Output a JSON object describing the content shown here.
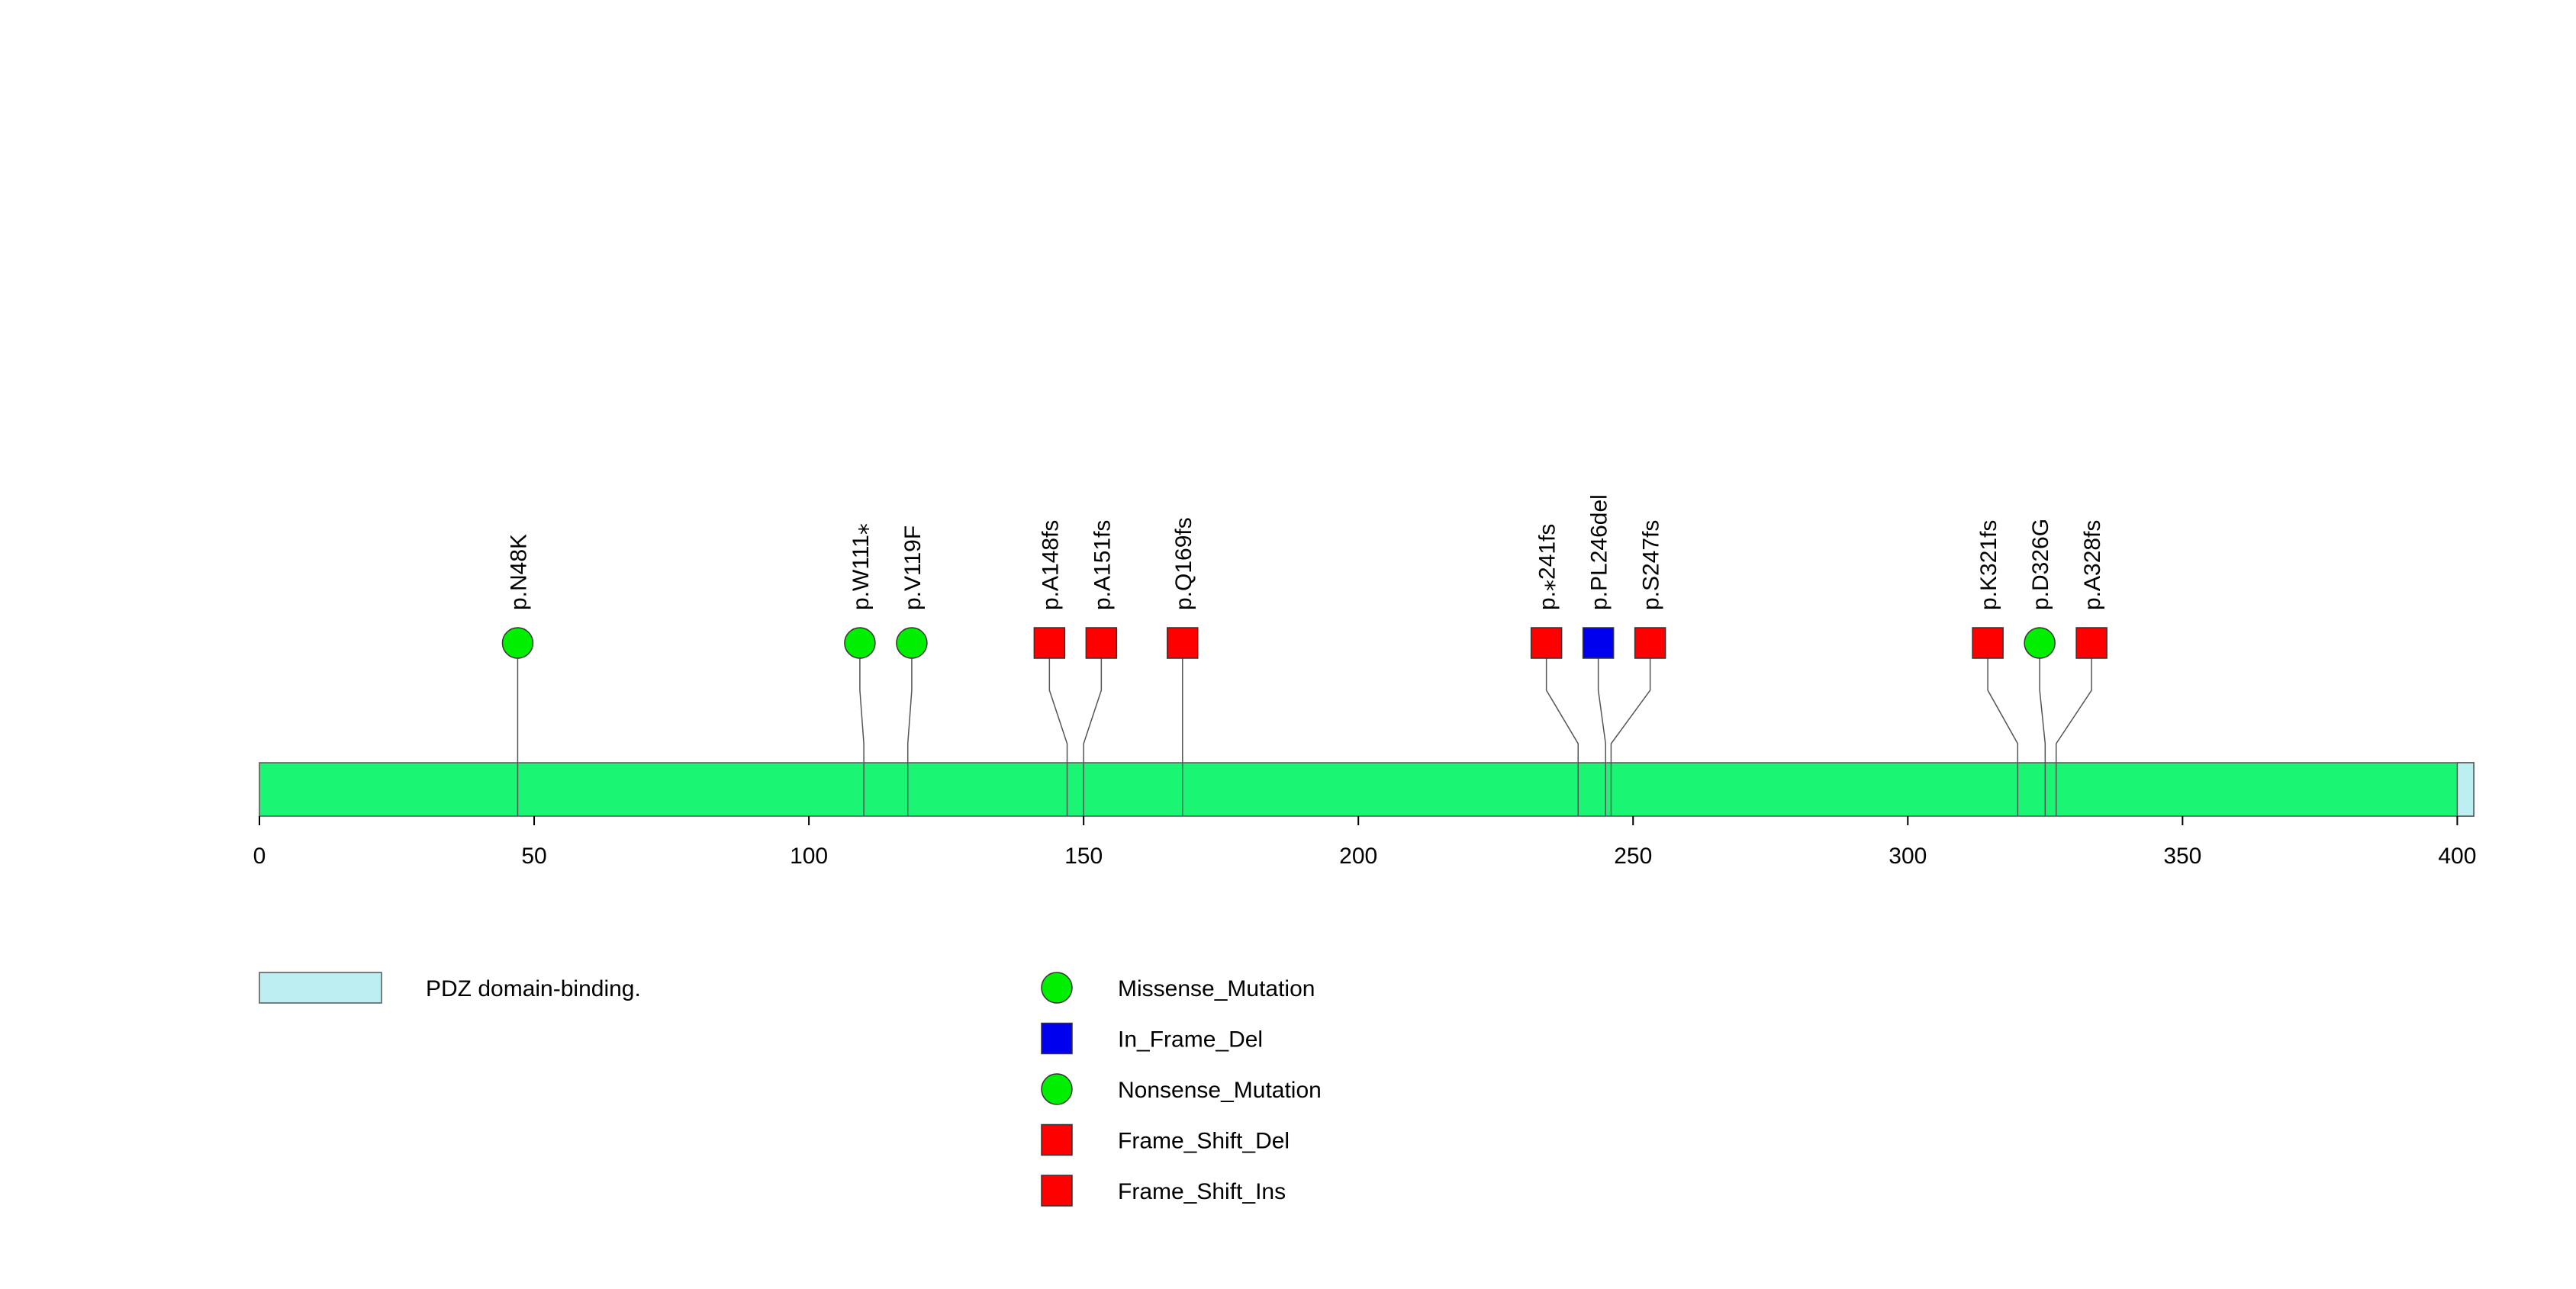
{
  "chart_data": {
    "type": "lollipop",
    "title": "",
    "xlabel": "",
    "ylabel": "",
    "protein_length": 403,
    "xlim": [
      0,
      403
    ],
    "x_ticks": [
      0,
      50,
      100,
      150,
      200,
      250,
      300,
      350,
      400
    ],
    "domains": [
      {
        "name": "PDZ domain-binding.",
        "start": 400,
        "end": 403,
        "color": "#bdeef2"
      }
    ],
    "backbone_color": "#1af574",
    "mutations": [
      {
        "label": "p.N48K",
        "position": 47,
        "type": "Missense_Mutation"
      },
      {
        "label": "p.W111⁎",
        "position": 110,
        "type": "Nonsense_Mutation"
      },
      {
        "label": "p.V119F",
        "position": 118,
        "type": "Missense_Mutation"
      },
      {
        "label": "p.A148fs",
        "position": 147,
        "type": "Frame_Shift_Del"
      },
      {
        "label": "p.A151fs",
        "position": 150,
        "type": "Frame_Shift_Del"
      },
      {
        "label": "p.Q169fs",
        "position": 168,
        "type": "Frame_Shift_Del"
      },
      {
        "label": "p.⁎241fs",
        "position": 240,
        "type": "Frame_Shift_Del"
      },
      {
        "label": "p.PL246del",
        "position": 245,
        "type": "In_Frame_Del"
      },
      {
        "label": "p.S247fs",
        "position": 246,
        "type": "Frame_Shift_Ins"
      },
      {
        "label": "p.K321fs",
        "position": 320,
        "type": "Frame_Shift_Del"
      },
      {
        "label": "p.D326G",
        "position": 325,
        "type": "Missense_Mutation"
      },
      {
        "label": "p.A328fs",
        "position": 327,
        "type": "Frame_Shift_Del"
      }
    ],
    "legend": {
      "domains": [
        {
          "label": "PDZ domain-binding.",
          "color": "#bdeef2"
        }
      ],
      "mutation_types": [
        {
          "label": "Missense_Mutation",
          "shape": "circle",
          "color": "#00ee00"
        },
        {
          "label": "In_Frame_Del",
          "shape": "square",
          "color": "#0000ee"
        },
        {
          "label": "Nonsense_Mutation",
          "shape": "circle",
          "color": "#00ee00"
        },
        {
          "label": "Frame_Shift_Del",
          "shape": "square",
          "color": "#ff0000"
        },
        {
          "label": "Frame_Shift_Ins",
          "shape": "square",
          "color": "#ff0000"
        }
      ]
    }
  }
}
